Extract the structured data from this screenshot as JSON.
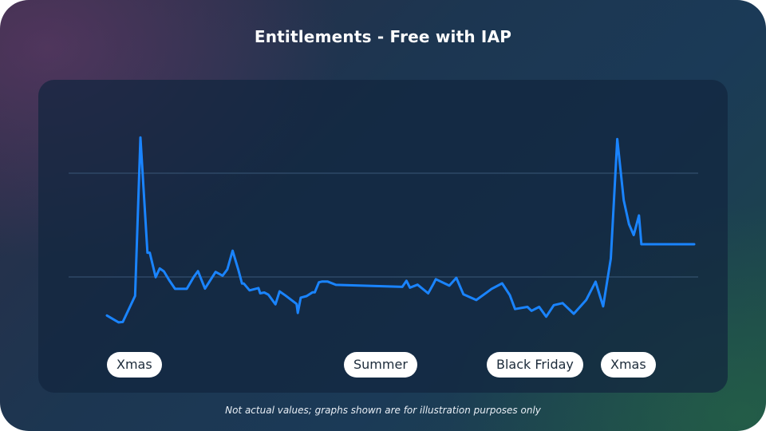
{
  "title": "Entitlements - Free with IAP",
  "footnote": "Not actual values; graphs shown are for illustration purposes only",
  "colors": {
    "line": "#1a84ff",
    "gridline": "#3a5878",
    "pill_background": "#ffffff",
    "pill_text": "#1c2b3a",
    "title_text": "#ffffff"
  },
  "chart_data": {
    "type": "line",
    "title": "Entitlements - Free with IAP",
    "xlabel": "",
    "ylabel": "",
    "xlim": [
      0,
      100
    ],
    "ylim": [
      0,
      100
    ],
    "grid_y": [
      50,
      100
    ],
    "grid": true,
    "legend": "none",
    "annotations": [
      "Xmas",
      "Summer",
      "Black Friday",
      "Xmas"
    ],
    "series": [
      {
        "x": [
          0,
          2,
          2.7,
          4.8,
          5.7,
          6.9,
          7.3,
          8.3,
          9.0,
          9.7,
          10.6,
          11.6,
          13.6,
          14.8,
          15.5,
          16.7,
          18.5,
          19.7,
          20.5,
          21.4,
          22.4,
          23.0,
          23.3,
          24.3,
          25.8,
          26.1,
          26.8,
          27.5,
          28.7,
          29.4,
          30.4,
          32.3,
          32.5,
          33.0,
          34.0,
          35.0,
          35.4,
          36.1,
          36.6,
          37.6,
          39.0,
          50.3,
          51.0,
          51.6,
          52.9,
          54.7,
          55.6,
          56.0,
          58.3,
          59.5,
          60.7,
          62.9,
          64.8,
          65.5,
          67.3,
          68.6,
          69.5,
          71.6,
          72.3,
          73.6,
          74.8,
          76.1,
          77.6,
          79.5,
          81.6,
          83.2,
          84.5,
          85.8,
          86.9,
          88.0,
          88.9,
          89.7,
          90.6,
          91.0,
          100
        ]
      }
    ],
    "series_values": [
      8,
      4.5,
      4.7,
      18,
      98.7,
      40,
      40,
      27.5,
      32,
      30.5,
      26,
      21.6,
      21.6,
      27.7,
      30.6,
      21.7,
      30.2,
      28.3,
      31.5,
      41,
      31,
      24.3,
      24.3,
      20.8,
      22,
      19.3,
      19.7,
      18.6,
      13.7,
      20.3,
      18.2,
      13.9,
      9.3,
      17.1,
      17.9,
      19.8,
      19.8,
      24.9,
      25.3,
      25.3,
      23.6,
      22.6,
      25.7,
      22.2,
      23.7,
      19.3,
      24.1,
      26.5,
      23.2,
      27.2,
      18.8,
      15.9,
      20,
      21.6,
      24.4,
      18.4,
      11.3,
      12.4,
      10.4,
      12.4,
      7.4,
      13.3,
      14.3,
      8.9,
      15.9,
      25.2,
      12.7,
      37,
      97.9,
      66.7,
      54.5,
      49,
      59,
      44.3,
      44.3
    ]
  }
}
